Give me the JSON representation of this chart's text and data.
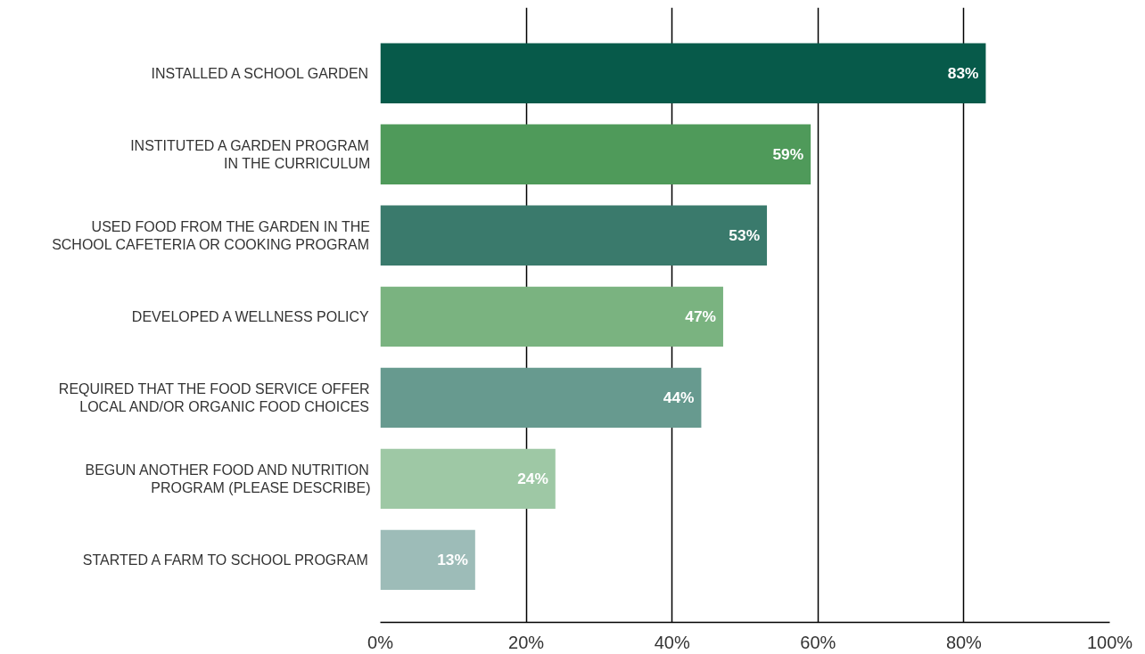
{
  "chart_data": {
    "type": "bar",
    "orientation": "horizontal",
    "categories": [
      "INSTALLED A SCHOOL GARDEN",
      "INSTITUTED A GARDEN PROGRAM\nIN THE CURRICULUM",
      "USED FOOD FROM THE GARDEN IN THE\nSCHOOL CAFETERIA OR COOKING PROGRAM",
      "DEVELOPED A WELLNESS POLICY",
      "REQUIRED THAT THE FOOD SERVICE OFFER\nLOCAL AND/OR ORGANIC FOOD CHOICES",
      "BEGUN ANOTHER FOOD AND NUTRITION\nPROGRAM (PLEASE DESCRIBE)",
      "STARTED A FARM TO SCHOOL PROGRAM"
    ],
    "values": [
      83,
      59,
      53,
      47,
      44,
      24,
      13
    ],
    "colors": [
      "#075a4a",
      "#4f9a5a",
      "#3a7a6c",
      "#7ab380",
      "#679a8f",
      "#9ec8a5",
      "#9dbcb8"
    ],
    "value_labels": [
      "83%",
      "59%",
      "53%",
      "47%",
      "44%",
      "24%",
      "13%"
    ],
    "xlim": [
      0,
      100
    ],
    "xticks": [
      {
        "value": 0,
        "label": "0%"
      },
      {
        "value": 20,
        "label": "20%"
      },
      {
        "value": 40,
        "label": "40%"
      },
      {
        "value": 60,
        "label": "60%"
      },
      {
        "value": 80,
        "label": "80%"
      },
      {
        "value": 100,
        "label": "100%"
      }
    ],
    "grid": "x"
  }
}
